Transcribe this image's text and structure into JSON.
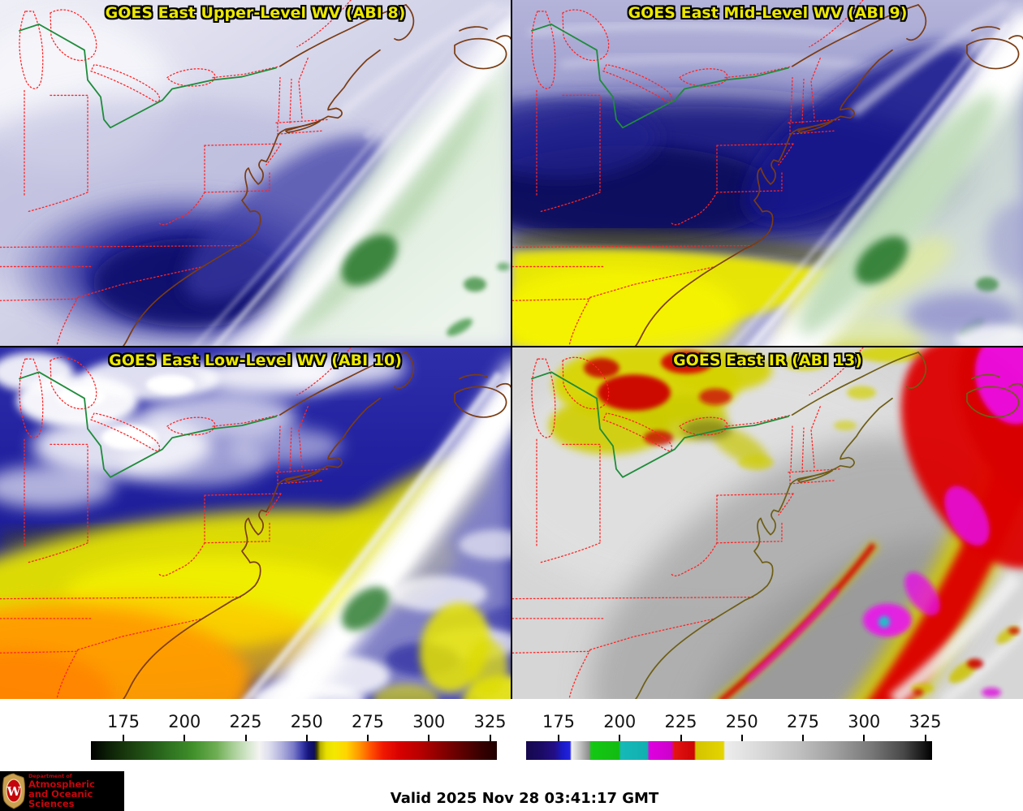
{
  "panels": [
    {
      "id": "abi8",
      "title": "GOES East Upper-Level WV (ABI 8)"
    },
    {
      "id": "abi9",
      "title": "GOES East Mid-Level WV (ABI 9)"
    },
    {
      "id": "abi10",
      "title": "GOES East Low-Level WV (ABI 10)"
    },
    {
      "id": "abi13",
      "title": "GOES East IR (ABI 13)"
    }
  ],
  "colors": {
    "panel_title": "#ece800",
    "state_borders": "#ff2424",
    "coastline_wv": "#7a3c12",
    "coastline_ir": "#6e5e16",
    "lakes_border_line": "#1e8c3a",
    "tick_label": "#141414",
    "timestamp_text": "#000000",
    "logo_background": "#000000",
    "logo_text": "#c5050c"
  },
  "colorbars": [
    {
      "name": "water-vapor-colorbar",
      "ticks": [
        "175",
        "200",
        "225",
        "250",
        "275",
        "300",
        "325"
      ],
      "tick_start_pct": 8,
      "tick_step_pct": 15.05,
      "stops": [
        [
          "#000000",
          0
        ],
        [
          "#0b1e06",
          4
        ],
        [
          "#17350c",
          8
        ],
        [
          "#2b6b1e",
          18
        ],
        [
          "#3f8f2a",
          25
        ],
        [
          "#6fae54",
          31
        ],
        [
          "#a8cf96",
          35
        ],
        [
          "#d8e8d0",
          39
        ],
        [
          "#f4f4f2",
          41.5
        ],
        [
          "#dcdcee",
          44
        ],
        [
          "#b0b0dc",
          47
        ],
        [
          "#7878c8",
          50
        ],
        [
          "#3a3aaa",
          52
        ],
        [
          "#16167e",
          53.5
        ],
        [
          "#0d0d5e",
          55
        ],
        [
          "#3a3a00",
          55.6
        ],
        [
          "#b8b000",
          56.5
        ],
        [
          "#e8e000",
          58
        ],
        [
          "#f4e800",
          60
        ],
        [
          "#ffd400",
          63
        ],
        [
          "#ff9800",
          66
        ],
        [
          "#ff5000",
          69
        ],
        [
          "#f01800",
          72
        ],
        [
          "#d80000",
          76
        ],
        [
          "#b80000",
          81
        ],
        [
          "#8c0000",
          86
        ],
        [
          "#600000",
          91
        ],
        [
          "#380000",
          96
        ],
        [
          "#200000",
          100
        ]
      ]
    },
    {
      "name": "infrared-colorbar",
      "ticks": [
        "175",
        "200",
        "225",
        "250",
        "275",
        "300",
        "325"
      ],
      "tick_start_pct": 8,
      "tick_step_pct": 15.05,
      "stops": [
        [
          "#16084e",
          0
        ],
        [
          "#1c0b66",
          4
        ],
        [
          "#230e86",
          7
        ],
        [
          "#1a1ac8",
          9
        ],
        [
          "#2222e0",
          10.8
        ],
        [
          "#f2f2f2",
          11.2
        ],
        [
          "#c8c8c8",
          13
        ],
        [
          "#8e8e8e",
          15.5
        ],
        [
          "#14c814",
          16
        ],
        [
          "#12bc12",
          22.9
        ],
        [
          "#16b8b8",
          23.3
        ],
        [
          "#12b0b0",
          29.9
        ],
        [
          "#e000e0",
          30.3
        ],
        [
          "#cc00cc",
          35.9
        ],
        [
          "#e41414",
          36.3
        ],
        [
          "#cc0404",
          41.4
        ],
        [
          "#d4c400",
          41.8
        ],
        [
          "#e4d400",
          48.6
        ],
        [
          "#ededed",
          49
        ],
        [
          "#d8d8d8",
          58
        ],
        [
          "#c0c0c0",
          67
        ],
        [
          "#a0a0a0",
          76
        ],
        [
          "#787878",
          85
        ],
        [
          "#484848",
          93
        ],
        [
          "#000000",
          100
        ]
      ]
    }
  ],
  "footer": {
    "timestamp": "Valid 2025 Nov 28 03:41:17 GMT",
    "logo": {
      "dept_line": "Department of",
      "name_line1": "Atmospheric",
      "name_line2": "and Oceanic Sciences",
      "crest_letter": "W"
    }
  }
}
